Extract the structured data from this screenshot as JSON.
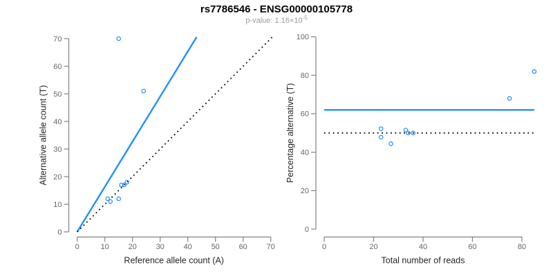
{
  "figure": {
    "title": "rs7786546 - ENSG00000105778",
    "p_label": "p-value: ",
    "p_mantissa": "1.16×10",
    "p_exponent": "-5"
  },
  "colors": {
    "accent_blue": "#1E90FF",
    "dotted_black": "#000000",
    "axis_line_gray": "#808080",
    "tick_label_gray": "#666666",
    "axis_title_dark": "#262626",
    "subtitle_gray": "#9a9a9a"
  },
  "chart_data": [
    {
      "type": "scatter",
      "panel": "left",
      "xlabel": "Reference allele count (A)",
      "ylabel": "Alternative allele count (T)",
      "xlim": [
        0,
        70
      ],
      "ylim": [
        0,
        70
      ],
      "xticks": [
        0,
        10,
        20,
        30,
        40,
        50,
        60,
        70
      ],
      "yticks": [
        0,
        10,
        20,
        30,
        40,
        50,
        60,
        70
      ],
      "grid": false,
      "points": [
        [
          15,
          70
        ],
        [
          24,
          51
        ],
        [
          11,
          12
        ],
        [
          12,
          11
        ],
        [
          15,
          12
        ],
        [
          16,
          17
        ],
        [
          17,
          17
        ],
        [
          18,
          18
        ]
      ],
      "lines": [
        {
          "style": "solid",
          "color_key": "accent_blue",
          "points": [
            [
              0,
              0
            ],
            [
              43.2,
              70.6
            ]
          ]
        },
        {
          "style": "dotted",
          "color_key": "dotted_black",
          "points": [
            [
              0,
              0
            ],
            [
              70.5,
              70.5
            ]
          ]
        }
      ]
    },
    {
      "type": "scatter",
      "panel": "right",
      "xlabel": "Total number of reads",
      "ylabel": "Percentage alternative (T)",
      "xlim": [
        0,
        80
      ],
      "ylim": [
        0,
        100
      ],
      "xticks": [
        0,
        20,
        40,
        60,
        80
      ],
      "yticks": [
        0,
        20,
        40,
        60,
        80,
        100
      ],
      "grid": false,
      "points": [
        [
          85,
          82
        ],
        [
          75,
          68
        ],
        [
          23,
          52.2
        ],
        [
          23,
          47.8
        ],
        [
          27,
          44.4
        ],
        [
          33,
          51.5
        ],
        [
          34,
          50
        ],
        [
          36,
          50
        ]
      ],
      "lines": [
        {
          "style": "solid",
          "color_key": "accent_blue",
          "points": [
            [
              0,
              62
            ],
            [
              85,
              62
            ]
          ]
        },
        {
          "style": "dotted",
          "color_key": "dotted_black",
          "points": [
            [
              0,
              50
            ],
            [
              85,
              50
            ]
          ]
        }
      ]
    }
  ]
}
